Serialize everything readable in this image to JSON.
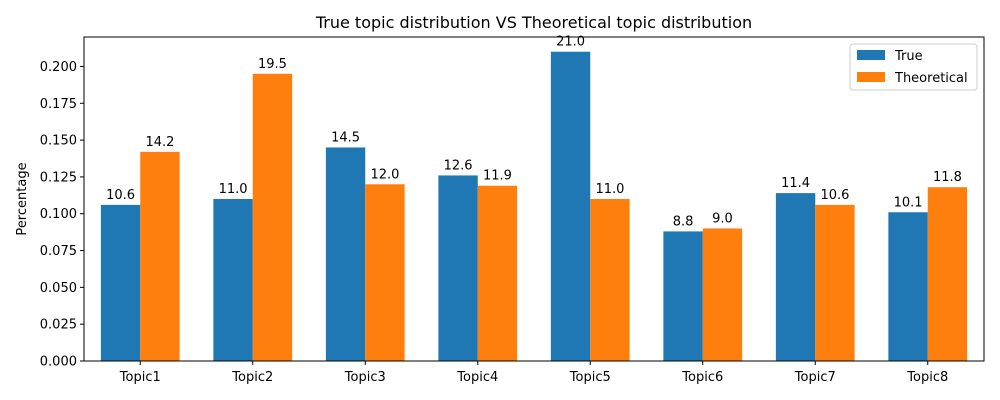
{
  "chart_data": {
    "type": "bar",
    "title": "True topic distribution VS Theoretical topic distribution",
    "xlabel": "",
    "ylabel": "Percentage",
    "ylim": [
      0,
      0.22
    ],
    "yticks": [
      0.0,
      0.025,
      0.05,
      0.075,
      0.1,
      0.125,
      0.15,
      0.175,
      0.2
    ],
    "ytick_labels": [
      "0.000",
      "0.025",
      "0.050",
      "0.075",
      "0.100",
      "0.125",
      "0.150",
      "0.175",
      "0.200"
    ],
    "categories": [
      "Topic1",
      "Topic2",
      "Topic3",
      "Topic4",
      "Topic5",
      "Topic6",
      "Topic7",
      "Topic8"
    ],
    "series": [
      {
        "name": "True",
        "color": "#1f77b4",
        "values": [
          0.106,
          0.11,
          0.145,
          0.126,
          0.21,
          0.088,
          0.114,
          0.101
        ],
        "labels": [
          "10.6",
          "11.0",
          "14.5",
          "12.6",
          "21.0",
          "8.8",
          "11.4",
          "10.1"
        ]
      },
      {
        "name": "Theoretical",
        "color": "#ff7f0e",
        "values": [
          0.142,
          0.195,
          0.12,
          0.119,
          0.11,
          0.09,
          0.106,
          0.118
        ],
        "labels": [
          "14.2",
          "19.5",
          "12.0",
          "11.9",
          "11.0",
          "9.0",
          "10.6",
          "11.8"
        ]
      }
    ],
    "grid": false,
    "legend_position": "top-right"
  }
}
